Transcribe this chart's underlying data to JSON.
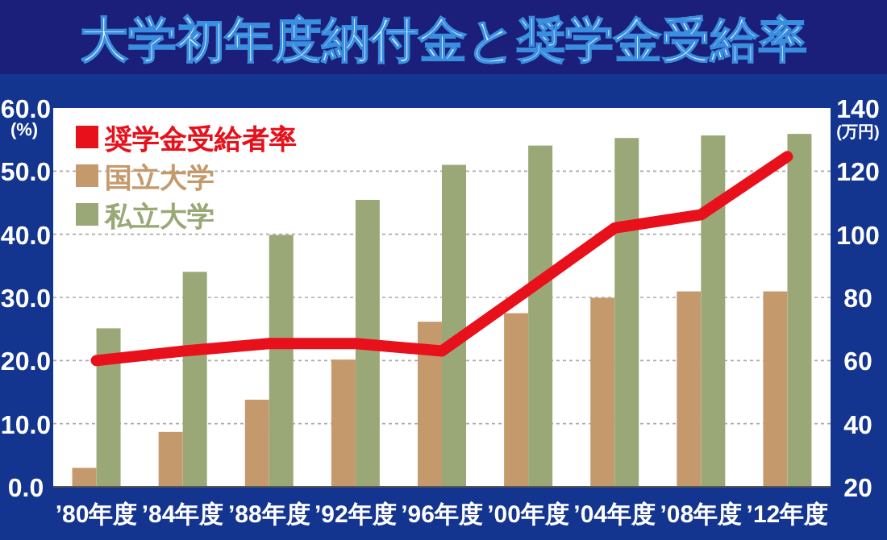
{
  "chart_data": {
    "type": "bar",
    "title": "大学初年度納付金と奨学金受給率",
    "categories": [
      "’80年度",
      "’84年度",
      "’88年度",
      "’92年度",
      "’96年度",
      "’00年度",
      "’04年度",
      "’08年度",
      "’12年度"
    ],
    "series": [
      {
        "name": "奨学金受給者率",
        "type": "line",
        "axis": "y",
        "color": "#e8101a",
        "values": [
          20.0,
          21.5,
          22.7,
          22.7,
          21.5,
          31.2,
          41.0,
          43.1,
          52.3
        ]
      },
      {
        "name": "国立大学",
        "axis": "y2",
        "color": "#c49a6c",
        "values": [
          26.0,
          37.4,
          47.6,
          60.3,
          72.3,
          75.0,
          79.9,
          81.9,
          81.9
        ]
      },
      {
        "name": "私立大学",
        "axis": "y2",
        "color": "#9aa878",
        "values": [
          70.2,
          88.1,
          99.8,
          110.9,
          122.0,
          128.1,
          130.5,
          131.3,
          131.8
        ]
      }
    ],
    "ylabel": "(%)",
    "y2label": "(万円)",
    "ylim": [
      0,
      60
    ],
    "yticks": [
      {
        "value": 0,
        "label": "0.0"
      },
      {
        "value": 10,
        "label": "10.0"
      },
      {
        "value": 20,
        "label": "20.0"
      },
      {
        "value": 30,
        "label": "30.0"
      },
      {
        "value": 40,
        "label": "40.0"
      },
      {
        "value": 50,
        "label": "50.0"
      },
      {
        "value": 60,
        "label": "60.0"
      }
    ],
    "y2lim": [
      20,
      140
    ],
    "y2ticks": [
      20,
      40,
      60,
      80,
      100,
      120,
      140
    ],
    "grid": "y",
    "legend": "top left"
  }
}
